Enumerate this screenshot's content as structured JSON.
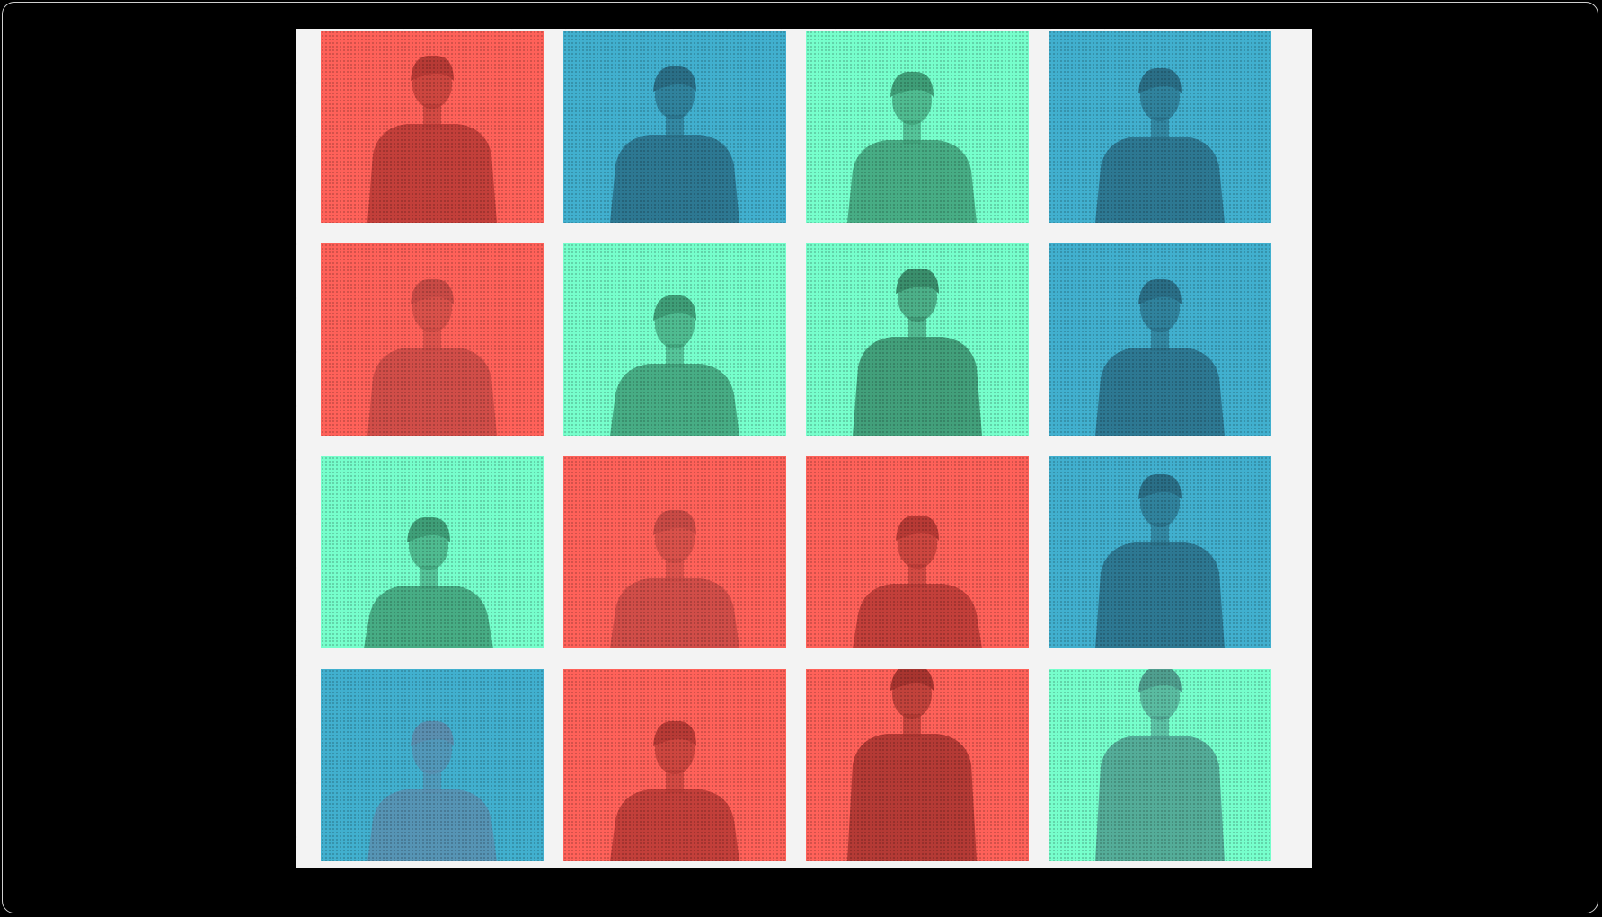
{
  "colors": {
    "background": "#000000",
    "panel": "#f3f3f3",
    "coral": "#ff6159",
    "blue": "#41b0cf",
    "mint": "#76ffcc"
  },
  "tiles": [
    {
      "color": "#ff6159",
      "shade": "#b83a35",
      "icon": "portrait"
    },
    {
      "color": "#41b0cf",
      "shade": "#2a6f87",
      "icon": "portrait"
    },
    {
      "color": "#76ffcc",
      "shade": "#3f9f78",
      "icon": "portrait"
    },
    {
      "color": "#41b0cf",
      "shade": "#2a6f87",
      "icon": "portrait"
    },
    {
      "color": "#ff6159",
      "shade": "#c94a45",
      "icon": "portrait"
    },
    {
      "color": "#76ffcc",
      "shade": "#3f9f78",
      "icon": "portrait"
    },
    {
      "color": "#76ffcc",
      "shade": "#3a8f6c",
      "icon": "portrait"
    },
    {
      "color": "#41b0cf",
      "shade": "#2a6f87",
      "icon": "portrait"
    },
    {
      "color": "#76ffcc",
      "shade": "#3f9f78",
      "icon": "portrait"
    },
    {
      "color": "#ff6159",
      "shade": "#c94a45",
      "icon": "portrait"
    },
    {
      "color": "#ff6159",
      "shade": "#b83a35",
      "icon": "portrait"
    },
    {
      "color": "#41b0cf",
      "shade": "#2a6f87",
      "icon": "portrait"
    },
    {
      "color": "#41b0cf",
      "shade": "#5a8fb0",
      "icon": "portrait"
    },
    {
      "color": "#ff6159",
      "shade": "#b83a35",
      "icon": "portrait"
    },
    {
      "color": "#ff6159",
      "shade": "#a8342f",
      "icon": "portrait"
    },
    {
      "color": "#76ffcc",
      "shade": "#4f9f8f",
      "icon": "portrait"
    }
  ]
}
